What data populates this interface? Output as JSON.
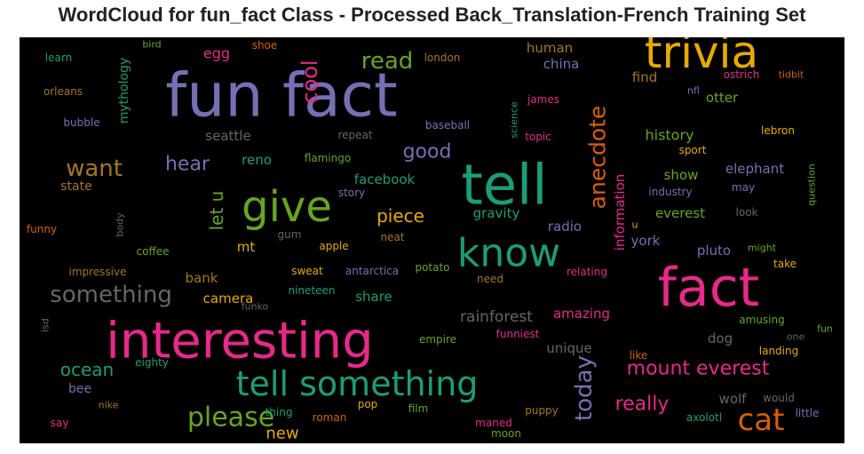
{
  "chart_data": {
    "type": "wordcloud",
    "title": "WordCloud for fun_fact Class - Processed Back_Translation-French Training Set",
    "background": "#000000",
    "palette": [
      "#1b9e77",
      "#d95f02",
      "#7570b3",
      "#e7298a",
      "#66a61e",
      "#e6ab02",
      "#a6761d",
      "#666666"
    ],
    "words": [
      {
        "text": "fun fact",
        "color": "#7570b3",
        "size": 9,
        "vertical": false
      },
      {
        "text": "trivia",
        "color": "#e6ab02",
        "size": 8,
        "vertical": false
      },
      {
        "text": "fact",
        "color": "#e7298a",
        "size": 8,
        "vertical": false
      },
      {
        "text": "interesting",
        "color": "#e7298a",
        "size": 8,
        "vertical": false
      },
      {
        "text": "tell",
        "color": "#1b9e77",
        "size": 8,
        "vertical": false
      },
      {
        "text": "know",
        "color": "#1b9e77",
        "size": 7,
        "vertical": false
      },
      {
        "text": "give",
        "color": "#66a61e",
        "size": 7,
        "vertical": false
      },
      {
        "text": "tell something",
        "color": "#1b9e77",
        "size": 6,
        "vertical": false
      },
      {
        "text": "cat",
        "color": "#d95f02",
        "size": 5,
        "vertical": false
      },
      {
        "text": "anecdote",
        "color": "#d95f02",
        "size": 4,
        "vertical": true
      },
      {
        "text": "please",
        "color": "#66a61e",
        "size": 4,
        "vertical": false
      },
      {
        "text": "want",
        "color": "#a6761d",
        "size": 4,
        "vertical": false
      },
      {
        "text": "something",
        "color": "#666666",
        "size": 4,
        "vertical": false
      },
      {
        "text": "cool",
        "color": "#e7298a",
        "size": 4,
        "vertical": true
      },
      {
        "text": "today",
        "color": "#7570b3",
        "size": 4,
        "vertical": true
      },
      {
        "text": "mount everest",
        "color": "#e7298a",
        "size": 4,
        "vertical": false
      },
      {
        "text": "read",
        "color": "#66a61e",
        "size": 3,
        "vertical": false
      },
      {
        "text": "let u",
        "color": "#66a61e",
        "size": 3,
        "vertical": true
      },
      {
        "text": "hear",
        "color": "#7570b3",
        "size": 3,
        "vertical": false
      },
      {
        "text": "good",
        "color": "#7570b3",
        "size": 3,
        "vertical": false
      },
      {
        "text": "piece",
        "color": "#e6ab02",
        "size": 3,
        "vertical": false
      },
      {
        "text": "ocean",
        "color": "#1b9e77",
        "size": 3,
        "vertical": false
      },
      {
        "text": "really",
        "color": "#e7298a",
        "size": 3,
        "vertical": false
      },
      {
        "text": "new",
        "color": "#e6ab02",
        "size": 2,
        "vertical": false
      },
      {
        "text": "rainforest",
        "color": "#666666",
        "size": 2,
        "vertical": false
      },
      {
        "text": "information",
        "color": "#e7298a",
        "size": 2,
        "vertical": true
      },
      {
        "text": "history",
        "color": "#66a61e",
        "size": 2,
        "vertical": false
      },
      {
        "text": "mythology",
        "color": "#1b9e77",
        "size": 2,
        "vertical": true
      },
      {
        "text": "facebook",
        "color": "#1b9e77",
        "size": 2,
        "vertical": false
      },
      {
        "text": "human",
        "color": "#a6761d",
        "size": 2,
        "vertical": false
      },
      {
        "text": "china",
        "color": "#7570b3",
        "size": 2,
        "vertical": false
      },
      {
        "text": "find",
        "color": "#a6761d",
        "size": 2,
        "vertical": false
      },
      {
        "text": "otter",
        "color": "#66a61e",
        "size": 2,
        "vertical": false
      },
      {
        "text": "elephant",
        "color": "#7570b3",
        "size": 2,
        "vertical": false
      },
      {
        "text": "show",
        "color": "#66a61e",
        "size": 2,
        "vertical": false
      },
      {
        "text": "everest",
        "color": "#66a61e",
        "size": 2,
        "vertical": false
      },
      {
        "text": "york",
        "color": "#7570b3",
        "size": 2,
        "vertical": false
      },
      {
        "text": "pluto",
        "color": "#7570b3",
        "size": 2,
        "vertical": false
      },
      {
        "text": "amazing",
        "color": "#e7298a",
        "size": 2,
        "vertical": false
      },
      {
        "text": "unique",
        "color": "#666666",
        "size": 2,
        "vertical": false
      },
      {
        "text": "dog",
        "color": "#666666",
        "size": 2,
        "vertical": false
      },
      {
        "text": "wolf",
        "color": "#666666",
        "size": 2,
        "vertical": false
      },
      {
        "text": "gravity",
        "color": "#1b9e77",
        "size": 2,
        "vertical": false
      },
      {
        "text": "radio",
        "color": "#7570b3",
        "size": 2,
        "vertical": false
      },
      {
        "text": "share",
        "color": "#1b9e77",
        "size": 2,
        "vertical": false
      },
      {
        "text": "camera",
        "color": "#e6ab02",
        "size": 2,
        "vertical": false
      },
      {
        "text": "bank",
        "color": "#a6761d",
        "size": 2,
        "vertical": false
      },
      {
        "text": "seattle",
        "color": "#666666",
        "size": 2,
        "vertical": false
      },
      {
        "text": "reno",
        "color": "#1b9e77",
        "size": 2,
        "vertical": false
      },
      {
        "text": "state",
        "color": "#a6761d",
        "size": 2,
        "vertical": false
      },
      {
        "text": "egg",
        "color": "#e7298a",
        "size": 2,
        "vertical": false
      },
      {
        "text": "mt",
        "color": "#e6ab02",
        "size": 2,
        "vertical": false
      },
      {
        "text": "bee",
        "color": "#7570b3",
        "size": 2,
        "vertical": false
      },
      {
        "text": "bird",
        "color": "#66a61e",
        "size": 1,
        "vertical": false
      },
      {
        "text": "shoe",
        "color": "#d95f02",
        "size": 1,
        "vertical": false
      },
      {
        "text": "learn",
        "color": "#1b9e77",
        "size": 1,
        "vertical": false
      },
      {
        "text": "london",
        "color": "#a6761d",
        "size": 1,
        "vertical": false
      },
      {
        "text": "orleans",
        "color": "#a6761d",
        "size": 1,
        "vertical": false
      },
      {
        "text": "bubble",
        "color": "#7570b3",
        "size": 1,
        "vertical": false
      },
      {
        "text": "repeat",
        "color": "#666666",
        "size": 1,
        "vertical": false
      },
      {
        "text": "baseball",
        "color": "#7570b3",
        "size": 1,
        "vertical": false
      },
      {
        "text": "james",
        "color": "#e7298a",
        "size": 1,
        "vertical": false
      },
      {
        "text": "topic",
        "color": "#e7298a",
        "size": 1,
        "vertical": false
      },
      {
        "text": "science",
        "color": "#1b9e77",
        "size": 1,
        "vertical": true
      },
      {
        "text": "nfl",
        "color": "#7570b3",
        "size": 1,
        "vertical": false
      },
      {
        "text": "ostrich",
        "color": "#e7298a",
        "size": 1,
        "vertical": false
      },
      {
        "text": "tidbit",
        "color": "#d95f02",
        "size": 1,
        "vertical": false
      },
      {
        "text": "lebron",
        "color": "#e6ab02",
        "size": 1,
        "vertical": false
      },
      {
        "text": "sport",
        "color": "#e6ab02",
        "size": 1,
        "vertical": false
      },
      {
        "text": "flamingo",
        "color": "#66a61e",
        "size": 1,
        "vertical": false
      },
      {
        "text": "story",
        "color": "#7570b3",
        "size": 1,
        "vertical": false
      },
      {
        "text": "industry",
        "color": "#7570b3",
        "size": 1,
        "vertical": false
      },
      {
        "text": "may",
        "color": "#7570b3",
        "size": 1,
        "vertical": false
      },
      {
        "text": "question",
        "color": "#66a61e",
        "size": 1,
        "vertical": true
      },
      {
        "text": "look",
        "color": "#666666",
        "size": 1,
        "vertical": false
      },
      {
        "text": "u",
        "color": "#e6ab02",
        "size": 1,
        "vertical": false
      },
      {
        "text": "body",
        "color": "#666666",
        "size": 1,
        "vertical": true
      },
      {
        "text": "funny",
        "color": "#d95f02",
        "size": 1,
        "vertical": false
      },
      {
        "text": "gum",
        "color": "#666666",
        "size": 1,
        "vertical": false
      },
      {
        "text": "apple",
        "color": "#e6ab02",
        "size": 1,
        "vertical": false
      },
      {
        "text": "neat",
        "color": "#a6761d",
        "size": 1,
        "vertical": false
      },
      {
        "text": "coffee",
        "color": "#66a61e",
        "size": 1,
        "vertical": false
      },
      {
        "text": "might",
        "color": "#66a61e",
        "size": 1,
        "vertical": false
      },
      {
        "text": "take",
        "color": "#e6ab02",
        "size": 1,
        "vertical": false
      },
      {
        "text": "impressive",
        "color": "#a6761d",
        "size": 1,
        "vertical": false
      },
      {
        "text": "sweat",
        "color": "#e6ab02",
        "size": 1,
        "vertical": false
      },
      {
        "text": "antarctica",
        "color": "#7570b3",
        "size": 1,
        "vertical": false
      },
      {
        "text": "potato",
        "color": "#66a61e",
        "size": 1,
        "vertical": false
      },
      {
        "text": "relating",
        "color": "#e7298a",
        "size": 1,
        "vertical": false
      },
      {
        "text": "need",
        "color": "#a6761d",
        "size": 1,
        "vertical": false
      },
      {
        "text": "nineteen",
        "color": "#1b9e77",
        "size": 1,
        "vertical": false
      },
      {
        "text": "funko",
        "color": "#666666",
        "size": 1,
        "vertical": false
      },
      {
        "text": "amusing",
        "color": "#66a61e",
        "size": 1,
        "vertical": false
      },
      {
        "text": "fun",
        "color": "#66a61e",
        "size": 1,
        "vertical": false
      },
      {
        "text": "one",
        "color": "#666666",
        "size": 1,
        "vertical": false
      },
      {
        "text": "lsd",
        "color": "#666666",
        "size": 1,
        "vertical": true
      },
      {
        "text": "empire",
        "color": "#66a61e",
        "size": 1,
        "vertical": false
      },
      {
        "text": "funniest",
        "color": "#e7298a",
        "size": 1,
        "vertical": false
      },
      {
        "text": "eighty",
        "color": "#1b9e77",
        "size": 1,
        "vertical": false
      },
      {
        "text": "like",
        "color": "#d95f02",
        "size": 1,
        "vertical": false
      },
      {
        "text": "landing",
        "color": "#e6ab02",
        "size": 1,
        "vertical": false
      },
      {
        "text": "would",
        "color": "#666666",
        "size": 1,
        "vertical": false
      },
      {
        "text": "little",
        "color": "#7570b3",
        "size": 1,
        "vertical": false
      },
      {
        "text": "axolotl",
        "color": "#1b9e77",
        "size": 1,
        "vertical": false
      },
      {
        "text": "nike",
        "color": "#a6761d",
        "size": 1,
        "vertical": false
      },
      {
        "text": "thing",
        "color": "#1b9e77",
        "size": 1,
        "vertical": false
      },
      {
        "text": "roman",
        "color": "#d95f02",
        "size": 1,
        "vertical": false
      },
      {
        "text": "pop",
        "color": "#e6ab02",
        "size": 1,
        "vertical": false
      },
      {
        "text": "film",
        "color": "#66a61e",
        "size": 1,
        "vertical": false
      },
      {
        "text": "maned",
        "color": "#e7298a",
        "size": 1,
        "vertical": false
      },
      {
        "text": "moon",
        "color": "#66a61e",
        "size": 1,
        "vertical": false
      },
      {
        "text": "puppy",
        "color": "#a6761d",
        "size": 1,
        "vertical": false
      },
      {
        "text": "say",
        "color": "#e7298a",
        "size": 1,
        "vertical": false
      }
    ]
  }
}
